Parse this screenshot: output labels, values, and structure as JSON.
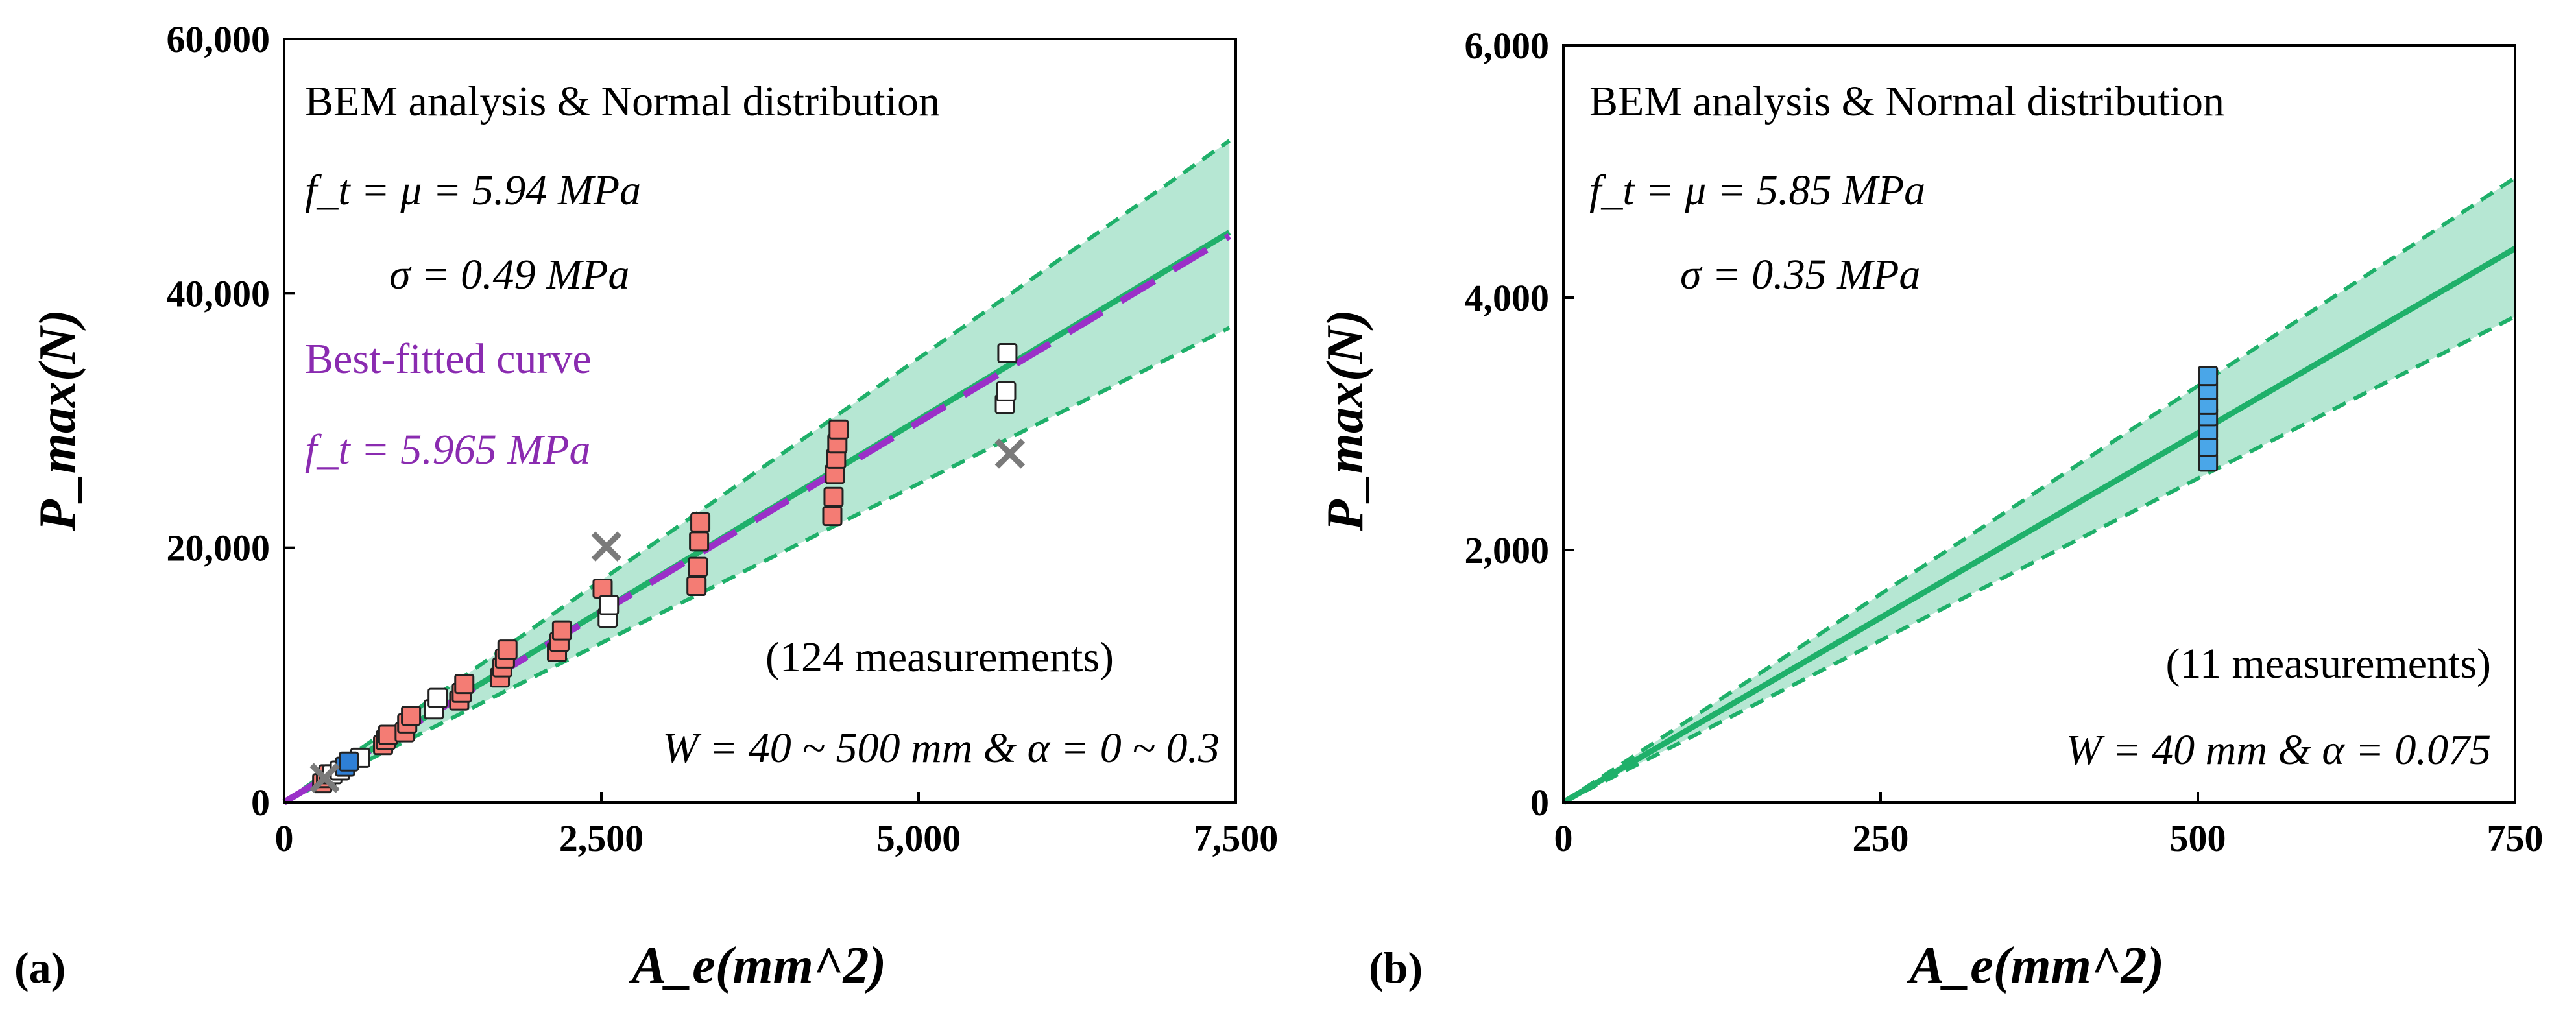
{
  "chart_data": [
    {
      "panel": "(a)",
      "type": "scatter",
      "xlabel": "A_e(mm^2)",
      "ylabel": "P_max(N)",
      "xlim": [
        0,
        7500
      ],
      "ylim": [
        0,
        60000
      ],
      "xticks": [
        "0",
        "2,500",
        "5,000",
        "7,500"
      ],
      "yticks": [
        "0",
        "20,000",
        "40,000",
        "60,000"
      ],
      "annotations": {
        "title": "BEM analysis & Normal distribution",
        "ft_line": "f_t = μ = 5.94 MPa",
        "sigma_line": "σ = 0.49 MPa",
        "best_fit_title": "Best-fitted curve",
        "best_fit_value": "f_t = 5.965 MPa",
        "count": "(124 measurements)",
        "conditions": "W = 40 ~ 500 mm & α = 0 ~ 0.3"
      },
      "mean_line": {
        "x": [
          0,
          7450
        ],
        "y": [
          0,
          44800
        ]
      },
      "upper_band": {
        "x": [
          0,
          7450
        ],
        "y": [
          0,
          52000
        ]
      },
      "lower_band": {
        "x": [
          0,
          7450
        ],
        "y": [
          0,
          37300
        ]
      },
      "best_fit_line": {
        "x": [
          0,
          7450
        ],
        "y": [
          0,
          44500
        ]
      },
      "series": [
        {
          "name": "red measurements",
          "color": "#f47c74",
          "points": [
            [
              300,
              1500
            ],
            [
              330,
              1900
            ],
            [
              350,
              2200
            ],
            [
              780,
              4500
            ],
            [
              800,
              4900
            ],
            [
              820,
              5300
            ],
            [
              950,
              5500
            ],
            [
              970,
              6200
            ],
            [
              1000,
              6800
            ],
            [
              1380,
              8000
            ],
            [
              1400,
              8600
            ],
            [
              1420,
              9300
            ],
            [
              1700,
              9800
            ],
            [
              1720,
              10600
            ],
            [
              1740,
              11300
            ],
            [
              1760,
              12000
            ],
            [
              2150,
              11800
            ],
            [
              2170,
              12600
            ],
            [
              2190,
              13500
            ],
            [
              2510,
              16800
            ],
            [
              3250,
              17000
            ],
            [
              3260,
              18500
            ],
            [
              3270,
              20500
            ],
            [
              3280,
              22000
            ],
            [
              4320,
              22500
            ],
            [
              4330,
              24000
            ],
            [
              4340,
              25800
            ],
            [
              4350,
              27000
            ],
            [
              4360,
              28200
            ],
            [
              4370,
              29300
            ]
          ]
        },
        {
          "name": "white measurements",
          "color": "#ffffff",
          "points": [
            [
              380,
              2200
            ],
            [
              440,
              2500
            ],
            [
              600,
              3500
            ],
            [
              1180,
              7300
            ],
            [
              1210,
              8200
            ],
            [
              2550,
              14500
            ],
            [
              2560,
              15500
            ],
            [
              5680,
              31300
            ],
            [
              5690,
              32300
            ],
            [
              5700,
              35300
            ]
          ]
        },
        {
          "name": "blue measurements",
          "color": "#2e7fd6",
          "points": [
            [
              480,
              2800
            ],
            [
              510,
              3200
            ]
          ]
        },
        {
          "name": "outliers",
          "marker": "x",
          "color": "#7a7a7a",
          "points": [
            [
              320,
              1900
            ],
            [
              2540,
              20100
            ],
            [
              5720,
              27400
            ]
          ]
        }
      ]
    },
    {
      "panel": "(b)",
      "type": "scatter",
      "xlabel": "A_e(mm^2)",
      "ylabel": "P_max(N)",
      "xlim": [
        0,
        750
      ],
      "ylim": [
        0,
        6000
      ],
      "xticks": [
        "0",
        "250",
        "500",
        "750"
      ],
      "yticks": [
        "0",
        "2,000",
        "4,000",
        "6,000"
      ],
      "annotations": {
        "title": "BEM analysis & Normal distribution",
        "ft_line": "f_t = μ = 5.85 MPa",
        "sigma_line": "σ = 0.35 MPa",
        "count": "(11 measurements)",
        "conditions": "W = 40 mm & α = 0.075"
      },
      "mean_line": {
        "x": [
          0,
          750
        ],
        "y": [
          0,
          4390
        ]
      },
      "upper_band": {
        "x": [
          0,
          750
        ],
        "y": [
          0,
          4950
        ]
      },
      "lower_band": {
        "x": [
          0,
          750
        ],
        "y": [
          0,
          3850
        ]
      },
      "series": [
        {
          "name": "blue measurements",
          "color": "#4aa6e8",
          "points": [
            [
              508,
              2700
            ],
            [
              508,
              2820
            ],
            [
              508,
              2950
            ],
            [
              508,
              3060
            ],
            [
              508,
              3150
            ],
            [
              508,
              3270
            ],
            [
              508,
              3380
            ]
          ]
        }
      ]
    }
  ]
}
